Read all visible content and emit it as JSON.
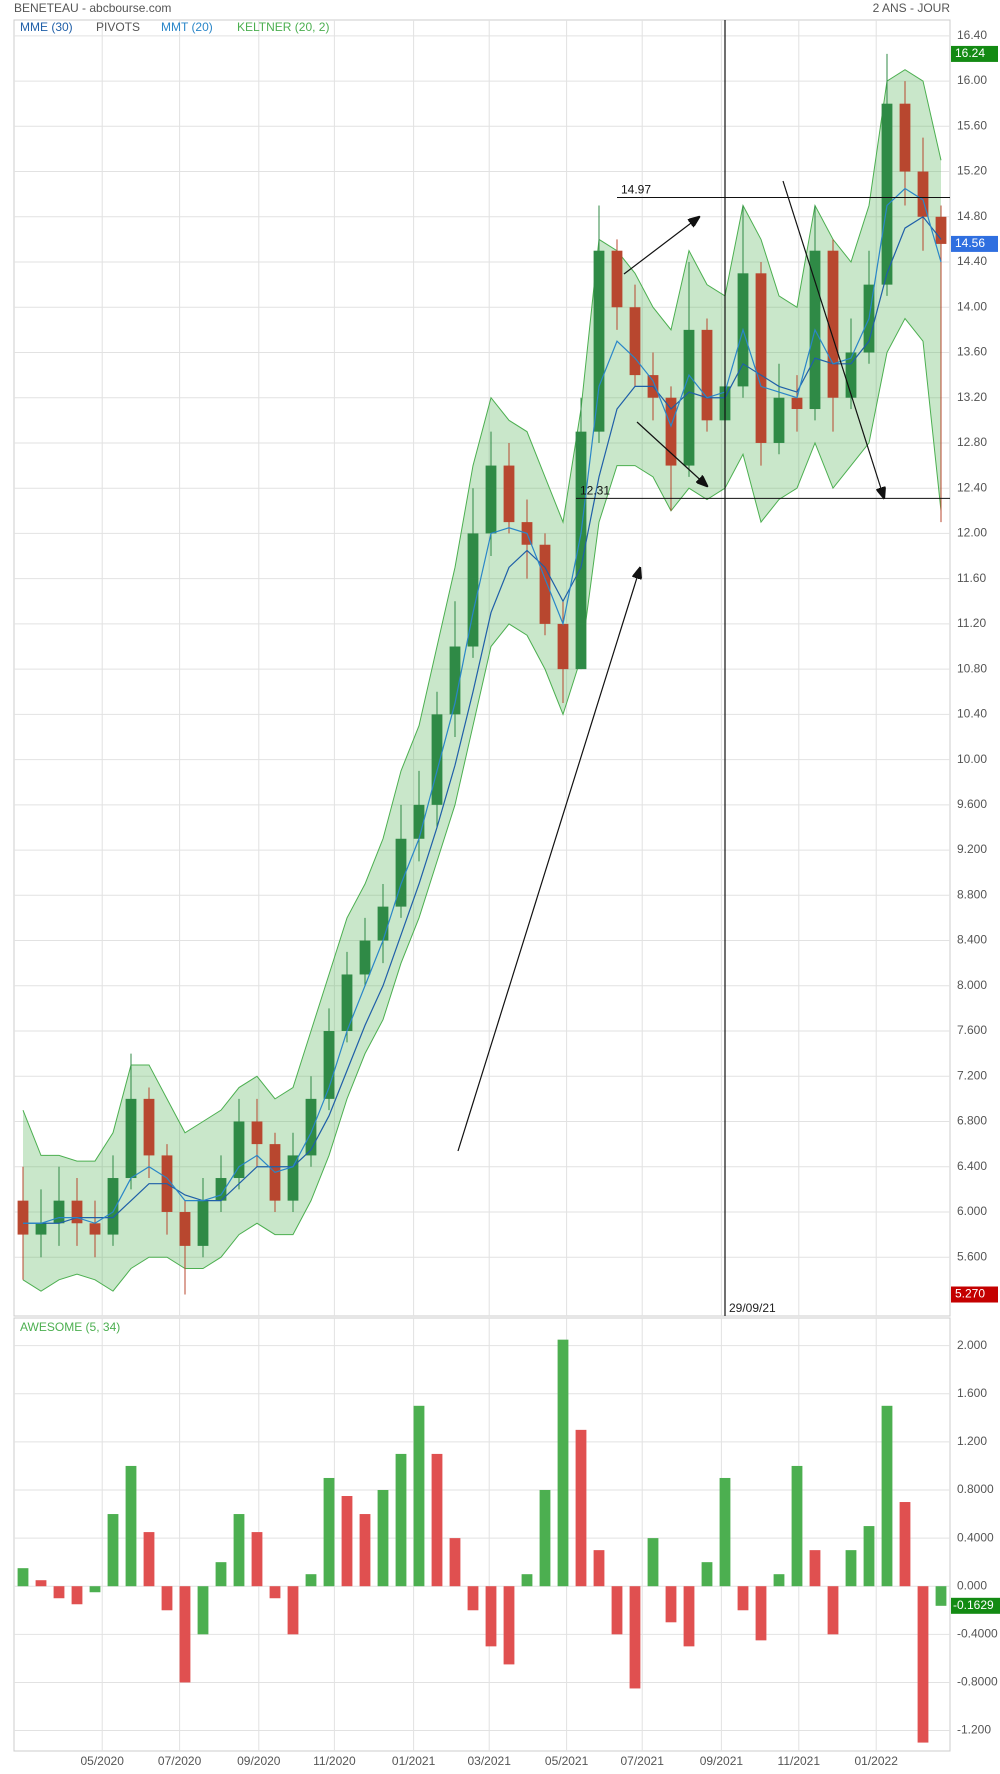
{
  "header": {
    "title": "BENETEAU - abcbourse.com",
    "period": "2 ANS - JOUR",
    "cursor_label": "29/09/21"
  },
  "chart_data": [
    {
      "type": "candlestick",
      "xlim": [
        0,
        52
      ],
      "xticks": [
        {
          "value": 4.9,
          "label": "05/2020"
        },
        {
          "value": 9.2,
          "label": "07/2020"
        },
        {
          "value": 13.6,
          "label": "09/2020"
        },
        {
          "value": 17.8,
          "label": "11/2020"
        },
        {
          "value": 22.2,
          "label": "01/2021"
        },
        {
          "value": 26.4,
          "label": "03/2021"
        },
        {
          "value": 30.7,
          "label": "05/2021"
        },
        {
          "value": 34.9,
          "label": "07/2021"
        },
        {
          "value": 39.3,
          "label": "09/2021"
        },
        {
          "value": 43.6,
          "label": "11/2021"
        },
        {
          "value": 47.9,
          "label": "01/2022"
        }
      ],
      "ylim": [
        5.08,
        16.54
      ],
      "yticks": [
        {
          "value": 5.6,
          "label": "5.600"
        },
        {
          "value": 6.0,
          "label": "6.000"
        },
        {
          "value": 6.4,
          "label": "6.400"
        },
        {
          "value": 6.8,
          "label": "6.800"
        },
        {
          "value": 7.2,
          "label": "7.200"
        },
        {
          "value": 7.6,
          "label": "7.600"
        },
        {
          "value": 8.0,
          "label": "8.000"
        },
        {
          "value": 8.4,
          "label": "8.400"
        },
        {
          "value": 8.8,
          "label": "8.800"
        },
        {
          "value": 9.2,
          "label": "9.200"
        },
        {
          "value": 9.6,
          "label": "9.600"
        },
        {
          "value": 10.0,
          "label": "10.00"
        },
        {
          "value": 10.4,
          "label": "10.40"
        },
        {
          "value": 10.8,
          "label": "10.80"
        },
        {
          "value": 11.2,
          "label": "11.20"
        },
        {
          "value": 11.6,
          "label": "11.60"
        },
        {
          "value": 12.0,
          "label": "12.00"
        },
        {
          "value": 12.4,
          "label": "12.40"
        },
        {
          "value": 12.8,
          "label": "12.80"
        },
        {
          "value": 13.2,
          "label": "13.20"
        },
        {
          "value": 13.6,
          "label": "13.60"
        },
        {
          "value": 14.0,
          "label": "14.00"
        },
        {
          "value": 14.4,
          "label": "14.40"
        },
        {
          "value": 14.8,
          "label": "14.80"
        },
        {
          "value": 15.2,
          "label": "15.20"
        },
        {
          "value": 15.6,
          "label": "15.60"
        },
        {
          "value": 16.0,
          "label": "16.00"
        },
        {
          "value": 16.4,
          "label": "16.40"
        }
      ],
      "grid": true,
      "up_color": "#2f8a46",
      "down_color": "#b8472f",
      "ohlc": {
        "open": [
          6.1,
          5.8,
          5.9,
          6.1,
          5.9,
          5.8,
          6.3,
          7.0,
          6.5,
          6.0,
          5.7,
          6.1,
          6.3,
          6.8,
          6.6,
          6.1,
          6.5,
          7.0,
          7.6,
          8.1,
          8.4,
          8.7,
          9.3,
          9.6,
          10.4,
          11.0,
          12.0,
          12.6,
          12.1,
          11.9,
          11.2,
          10.8,
          12.9,
          14.5,
          14.0,
          13.4,
          13.2,
          12.6,
          13.8,
          13.0,
          13.3,
          14.3,
          12.8,
          13.2,
          13.1,
          14.5,
          13.2,
          13.6,
          14.2,
          15.8,
          15.2,
          14.8
        ],
        "high": [
          6.4,
          6.2,
          6.4,
          6.3,
          6.1,
          6.5,
          7.4,
          7.1,
          6.6,
          6.1,
          6.3,
          6.5,
          7.0,
          7.0,
          6.7,
          6.7,
          7.2,
          7.8,
          8.3,
          8.6,
          8.9,
          9.6,
          9.9,
          10.6,
          11.4,
          12.4,
          12.9,
          12.8,
          12.3,
          12.0,
          11.4,
          13.2,
          14.9,
          14.6,
          14.2,
          13.6,
          13.3,
          14.4,
          13.9,
          13.6,
          14.9,
          14.4,
          13.5,
          13.4,
          14.9,
          14.6,
          13.9,
          14.5,
          16.24,
          16.0,
          15.5,
          14.9
        ],
        "low": [
          5.4,
          5.6,
          5.7,
          5.7,
          5.6,
          5.7,
          6.2,
          6.3,
          5.8,
          5.27,
          5.6,
          6.0,
          6.2,
          6.4,
          6.0,
          6.0,
          6.4,
          6.9,
          7.5,
          8.0,
          8.2,
          8.6,
          9.1,
          9.4,
          10.2,
          10.9,
          11.8,
          12.0,
          11.6,
          11.1,
          10.5,
          10.8,
          12.8,
          13.8,
          13.3,
          13.0,
          12.2,
          12.5,
          12.9,
          12.9,
          13.2,
          12.6,
          12.7,
          12.9,
          13.0,
          12.9,
          13.1,
          13.5,
          14.1,
          14.9,
          14.5,
          12.1
        ],
        "close": [
          5.8,
          5.9,
          6.1,
          5.9,
          5.8,
          6.3,
          7.0,
          6.5,
          6.0,
          5.7,
          6.1,
          6.3,
          6.8,
          6.6,
          6.1,
          6.5,
          7.0,
          7.6,
          8.1,
          8.4,
          8.7,
          9.3,
          9.6,
          10.4,
          11.0,
          12.0,
          12.6,
          12.1,
          11.9,
          11.2,
          10.8,
          12.9,
          14.5,
          14.0,
          13.4,
          13.2,
          12.6,
          13.8,
          13.0,
          13.3,
          14.3,
          12.8,
          13.2,
          13.1,
          14.5,
          13.2,
          13.6,
          14.2,
          15.8,
          15.2,
          14.8,
          14.56
        ]
      },
      "series": [
        {
          "name": "MME (30)",
          "color": "#1f5fa8",
          "values": [
            5.9,
            5.9,
            5.9,
            5.95,
            5.95,
            5.95,
            6.1,
            6.25,
            6.25,
            6.15,
            6.1,
            6.1,
            6.25,
            6.4,
            6.4,
            6.4,
            6.55,
            6.85,
            7.25,
            7.65,
            8.0,
            8.45,
            8.9,
            9.4,
            9.95,
            10.6,
            11.3,
            11.7,
            11.85,
            11.7,
            11.4,
            11.7,
            12.5,
            13.1,
            13.3,
            13.3,
            13.1,
            13.25,
            13.2,
            13.2,
            13.5,
            13.4,
            13.3,
            13.25,
            13.55,
            13.5,
            13.5,
            13.7,
            14.3,
            14.7,
            14.8,
            14.6
          ]
        },
        {
          "name": "PIVOTS",
          "color": "#555555"
        },
        {
          "name": "MMT (20)",
          "color": "#2a86c8",
          "values": [
            5.9,
            5.9,
            5.95,
            5.95,
            5.9,
            6.0,
            6.3,
            6.4,
            6.3,
            6.1,
            6.1,
            6.15,
            6.4,
            6.5,
            6.35,
            6.4,
            6.7,
            7.1,
            7.6,
            8.0,
            8.4,
            8.9,
            9.3,
            9.9,
            10.5,
            11.3,
            12.0,
            12.05,
            12.0,
            11.6,
            11.2,
            12.0,
            13.3,
            13.7,
            13.55,
            13.35,
            12.95,
            13.4,
            13.2,
            13.25,
            13.8,
            13.3,
            13.25,
            13.2,
            13.8,
            13.5,
            13.55,
            13.9,
            14.9,
            15.05,
            14.95,
            14.4
          ]
        },
        {
          "name": "KELTNER (20, 2)",
          "color": "#4caf50",
          "upper": [
            6.9,
            6.5,
            6.5,
            6.45,
            6.45,
            6.7,
            7.3,
            7.3,
            7.0,
            6.7,
            6.8,
            6.9,
            7.1,
            7.2,
            7.0,
            7.1,
            7.6,
            8.1,
            8.6,
            8.9,
            9.3,
            9.9,
            10.3,
            11.0,
            11.7,
            12.6,
            13.2,
            13.0,
            12.9,
            12.5,
            12.1,
            13.1,
            14.6,
            14.5,
            14.3,
            14.0,
            13.8,
            14.5,
            14.2,
            14.1,
            14.9,
            14.6,
            14.1,
            14.0,
            14.9,
            14.6,
            14.4,
            14.9,
            16.0,
            16.1,
            16.0,
            15.3
          ],
          "lower": [
            5.4,
            5.3,
            5.4,
            5.45,
            5.4,
            5.3,
            5.5,
            5.6,
            5.6,
            5.5,
            5.5,
            5.6,
            5.8,
            5.9,
            5.8,
            5.8,
            6.1,
            6.5,
            7.0,
            7.4,
            7.7,
            8.2,
            8.6,
            9.1,
            9.6,
            10.3,
            11.0,
            11.2,
            11.1,
            10.8,
            10.4,
            10.9,
            12.1,
            12.6,
            12.6,
            12.5,
            12.2,
            12.4,
            12.3,
            12.4,
            12.7,
            12.1,
            12.3,
            12.4,
            12.8,
            12.4,
            12.6,
            12.8,
            13.6,
            13.9,
            13.7,
            12.2
          ]
        }
      ],
      "levels": [
        14.97,
        12.31
      ],
      "price_markers": [
        {
          "value": 16.24,
          "label": "16.24",
          "color": "#138a13"
        },
        {
          "value": 14.56,
          "label": "14.56",
          "color": "#2f6fe0"
        },
        {
          "value": 5.27,
          "label": "5.270",
          "color": "#c40000"
        }
      ]
    },
    {
      "type": "bar",
      "title": "AWESOME (5, 34)",
      "ylim": [
        -1.37,
        2.23
      ],
      "yticks": [
        {
          "value": -1.2,
          "label": "-1.200"
        },
        {
          "value": -0.8,
          "label": "-0.8000"
        },
        {
          "value": -0.4,
          "label": "-0.4000"
        },
        {
          "value": 0,
          "label": "0.000"
        },
        {
          "value": 0.4,
          "label": "0.4000"
        },
        {
          "value": 0.8,
          "label": "0.8000"
        },
        {
          "value": 1.2,
          "label": "1.200"
        },
        {
          "value": 1.6,
          "label": "1.600"
        },
        {
          "value": 2.0,
          "label": "2.000"
        }
      ],
      "grid": true,
      "up_color": "#4caf50",
      "down_color": "#e05050",
      "last_color": "#138a13",
      "values": [
        0.15,
        0.05,
        -0.1,
        -0.15,
        -0.05,
        0.6,
        1.0,
        0.45,
        -0.2,
        -0.8,
        -0.4,
        0.2,
        0.6,
        0.45,
        -0.1,
        -0.4,
        0.1,
        0.9,
        0.75,
        0.6,
        0.8,
        1.1,
        1.5,
        1.1,
        0.4,
        -0.2,
        -0.5,
        -0.65,
        0.1,
        0.8,
        2.05,
        1.3,
        0.3,
        -0.4,
        -0.85,
        0.4,
        -0.3,
        -0.5,
        0.2,
        0.9,
        -0.2,
        -0.45,
        0.1,
        1.0,
        0.3,
        -0.4,
        0.3,
        0.5,
        1.5,
        0.7,
        -1.3,
        -0.1629
      ]
    }
  ]
}
